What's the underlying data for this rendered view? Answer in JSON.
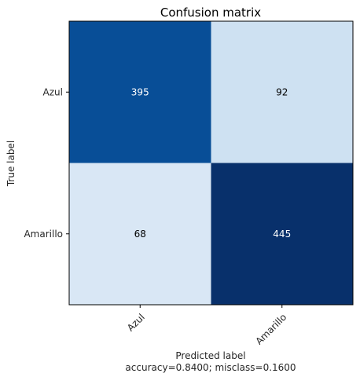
{
  "chart_data": {
    "type": "heatmap",
    "title": "Confusion matrix",
    "xlabel": "Predicted label",
    "ylabel": "True label",
    "x_categories": [
      "Azul",
      "Amarillo"
    ],
    "y_categories": [
      "Azul",
      "Amarillo"
    ],
    "values": [
      [
        395,
        92
      ],
      [
        68,
        445
      ]
    ],
    "footer": "accuracy=0.8400; misclass=0.1600",
    "colormap": "Blues",
    "colorscale": [
      "#f7fbff",
      "#deebf7",
      "#c6dbef",
      "#9ecae1",
      "#6baed6",
      "#4292c6",
      "#2171b5",
      "#08519c",
      "#08306b"
    ]
  }
}
